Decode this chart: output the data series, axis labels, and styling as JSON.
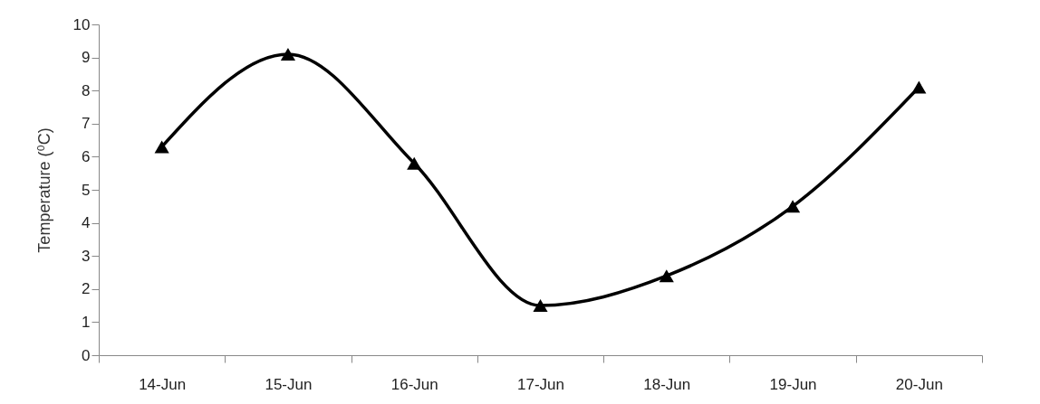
{
  "chart_data": {
    "type": "line",
    "ylabel": "Temperature (⁰C)",
    "categories": [
      "14-Jun",
      "15-Jun",
      "16-Jun",
      "17-Jun",
      "18-Jun",
      "19-Jun",
      "20-Jun"
    ],
    "series": [
      {
        "color": "#000000",
        "values": [
          6.3,
          9.1,
          5.8,
          1.5,
          2.4,
          4.5,
          8.1
        ]
      }
    ],
    "ylim": [
      0,
      10
    ],
    "yticks": [
      0,
      1,
      2,
      3,
      4,
      5,
      6,
      7,
      8,
      9,
      10
    ],
    "marker": "triangle",
    "line_style": "solid"
  }
}
